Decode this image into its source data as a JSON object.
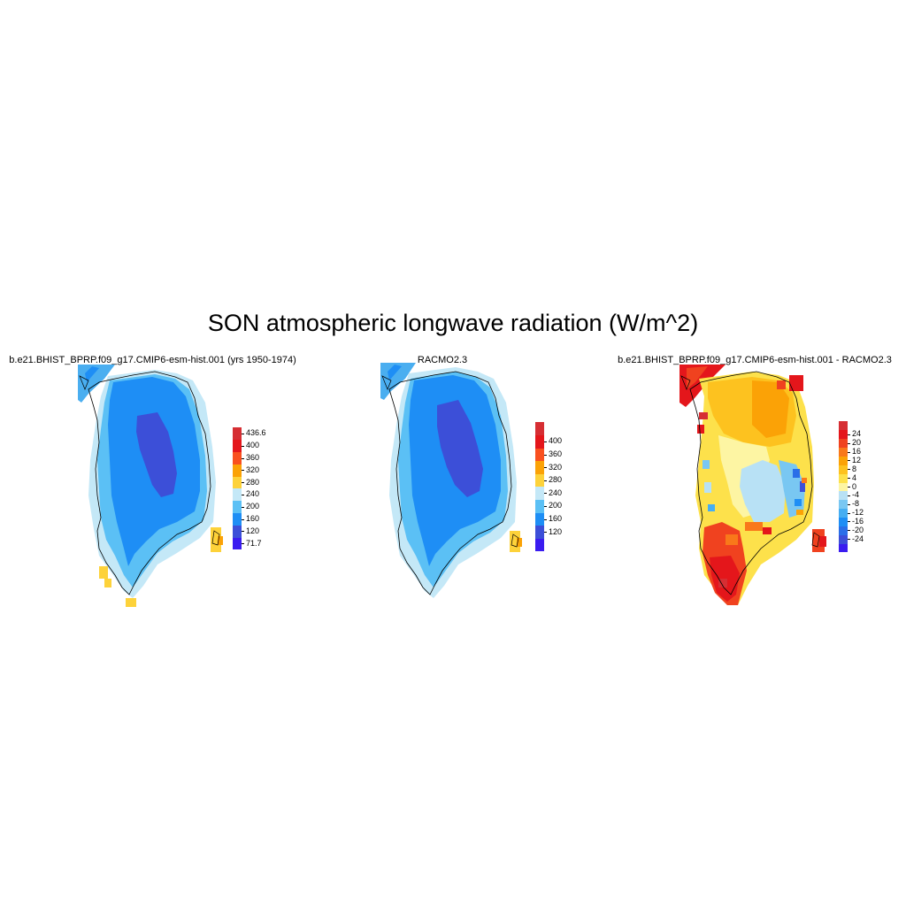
{
  "title": "SON atmospheric longwave radiation (W/m^2)",
  "panels": [
    {
      "title": "b.e21.BHIST_BPRP.f09_g17.CMIP6-esm-hist.001 (yrs 1950-1974)",
      "colorbar": {
        "colors": [
          "#3a1cf0",
          "#3c4fd8",
          "#1e8ef5",
          "#5bc0f5",
          "#c4e8f7",
          "#fdd23a",
          "#fba206",
          "#f9501f",
          "#e4161b",
          "#d62e33"
        ],
        "labels": [
          "71.7",
          "120",
          "160",
          "200",
          "240",
          "280",
          "320",
          "360",
          "400",
          "436.6"
        ]
      }
    },
    {
      "title": "RACMO2.3",
      "colorbar": {
        "colors": [
          "#3a1cf0",
          "#3c4fd8",
          "#1e8ef5",
          "#5bc0f5",
          "#c4e8f7",
          "#fdd23a",
          "#fba206",
          "#f9501f",
          "#e4161b",
          "#d62e33"
        ],
        "labels": [
          "120",
          "160",
          "200",
          "240",
          "280",
          "320",
          "360",
          "400"
        ]
      }
    },
    {
      "title": "b.e21.BHIST_BPRP.f09_g17.CMIP6-esm-hist.001 - RACMO2.3",
      "colorbar": {
        "colors": [
          "#3a1cf0",
          "#3c4fd8",
          "#2a6fe8",
          "#1e8ef5",
          "#46aef2",
          "#79c7f2",
          "#b8e1f5",
          "#fdf5a3",
          "#fde14b",
          "#fdc21f",
          "#fba206",
          "#f9781a",
          "#f0421f",
          "#e4161b",
          "#d62e33"
        ],
        "labels": [
          "-24",
          "-20",
          "-16",
          "-12",
          "-8",
          "-4",
          "0",
          "4",
          "8",
          "12",
          "16",
          "20",
          "24"
        ]
      }
    }
  ]
}
